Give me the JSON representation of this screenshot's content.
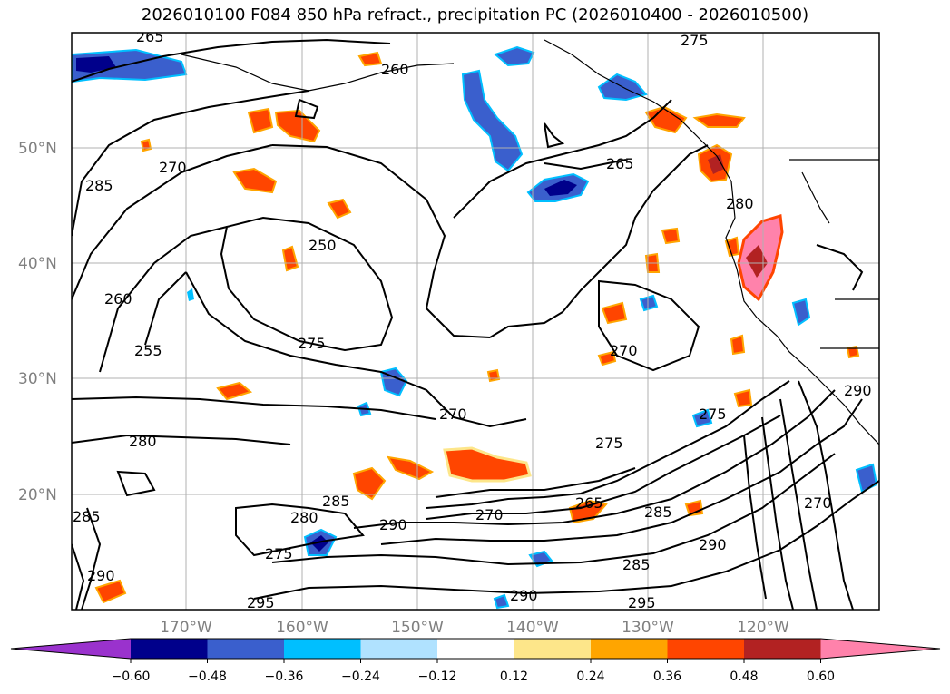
{
  "title": "2026010100 F084 850 hPa refract., precipitation PC (2026010400 - 2026010500)",
  "map": {
    "lat_labels": [
      "50°N",
      "40°N",
      "30°N",
      "20°N"
    ],
    "lon_labels": [
      "170°W",
      "160°W",
      "150°W",
      "140°W",
      "130°W",
      "120°W"
    ],
    "contour_labels": [
      "265",
      "260",
      "275",
      "270",
      "250",
      "260",
      "255",
      "265",
      "270",
      "270",
      "280",
      "275",
      "285",
      "280",
      "285",
      "290",
      "275",
      "270",
      "265",
      "285",
      "290",
      "285",
      "290",
      "295",
      "295",
      "290",
      "270",
      "275",
      "285",
      "280",
      "275",
      "290"
    ],
    "colors": {
      "coastline": "#000000",
      "grid": "#b0b0b0",
      "contour": "#000000",
      "label_gray": "#808080"
    }
  },
  "colorbar": {
    "ticks": [
      "−0.60",
      "−0.48",
      "−0.36",
      "−0.24",
      "−0.12",
      "0.12",
      "0.24",
      "0.36",
      "0.48",
      "0.60"
    ],
    "colors": [
      "#9a32cd",
      "#00008b",
      "#3a5fcd",
      "#00bfff",
      "#b0e2ff",
      "#ffffff",
      "#fde68a",
      "#ffa500",
      "#ff4500",
      "#b22222",
      "#ff82ab"
    ]
  }
}
